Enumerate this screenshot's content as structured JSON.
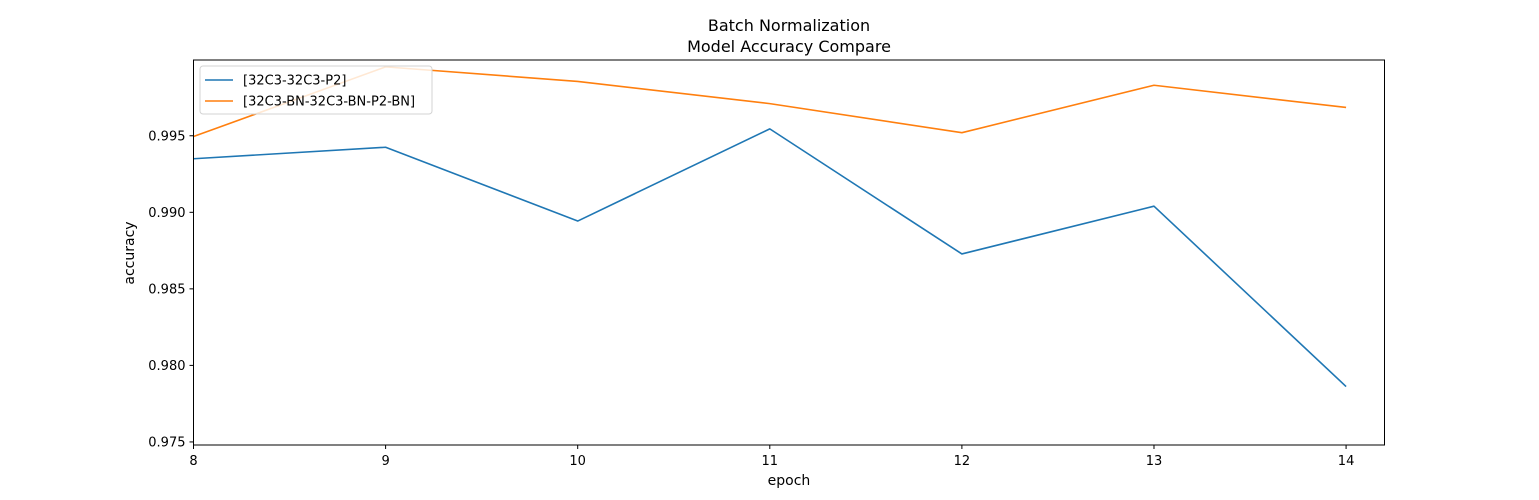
{
  "chart_data": {
    "type": "line",
    "title": "Batch Normalization",
    "subtitle": "Model Accuracy Compare",
    "xlabel": "epoch",
    "ylabel": "accuracy",
    "x": [
      8,
      9,
      10,
      11,
      12,
      13,
      14
    ],
    "xlim": [
      8,
      14.2
    ],
    "ylim": [
      0.9748,
      0.99995
    ],
    "xticks": [
      8,
      9,
      10,
      11,
      12,
      13,
      14
    ],
    "yticks": [
      0.975,
      0.98,
      0.985,
      0.99,
      0.995
    ],
    "ytick_labels": [
      "0.975",
      "0.980",
      "0.985",
      "0.990",
      "0.995"
    ],
    "grid": false,
    "legend_position": "upper-left",
    "series": [
      {
        "name": "[32C3-32C3-P2]",
        "color": "#1f77b4",
        "values": [
          0.9935,
          0.99425,
          0.98943,
          0.99545,
          0.98728,
          0.9904,
          0.97862
        ]
      },
      {
        "name": "[32C3-BN-32C3-BN-P2-BN]",
        "color": "#ff7f0e",
        "values": [
          0.99495,
          0.9995,
          0.99855,
          0.9971,
          0.9952,
          0.9983,
          0.99685
        ]
      }
    ]
  }
}
